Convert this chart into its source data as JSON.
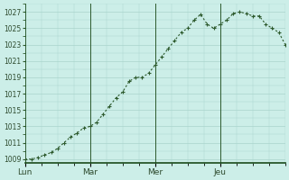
{
  "title": "",
  "x_labels": [
    "Lun",
    "Mar",
    "Mer",
    "Jeu"
  ],
  "y_ticks": [
    1009,
    1011,
    1013,
    1015,
    1017,
    1019,
    1021,
    1023,
    1025,
    1027
  ],
  "ylim": [
    1008.5,
    1028
  ],
  "xlim_days": [
    0,
    4
  ],
  "background_color": "#cceee8",
  "grid_color": "#aad4cc",
  "line_color": "#2d5a2d",
  "marker_color": "#2d5a2d",
  "data_x_days": [
    0.0,
    0.1,
    0.2,
    0.3,
    0.4,
    0.5,
    0.6,
    0.7,
    0.8,
    0.9,
    1.0,
    1.1,
    1.2,
    1.3,
    1.4,
    1.5,
    1.6,
    1.7,
    1.8,
    1.9,
    2.0,
    2.1,
    2.2,
    2.3,
    2.4,
    2.5,
    2.6,
    2.7,
    2.8,
    2.9,
    3.0,
    3.1,
    3.2,
    3.3,
    3.4,
    3.5,
    3.6,
    3.7,
    3.8,
    3.9,
    4.0
  ],
  "data_y": [
    1009.0,
    1009.0,
    1009.2,
    1009.5,
    1009.8,
    1010.3,
    1011.0,
    1011.7,
    1012.2,
    1012.8,
    1013.0,
    1013.5,
    1014.5,
    1015.5,
    1016.5,
    1017.2,
    1018.5,
    1019.0,
    1019.0,
    1019.5,
    1020.5,
    1021.5,
    1022.5,
    1023.5,
    1024.5,
    1025.0,
    1026.0,
    1026.7,
    1025.5,
    1025.0,
    1025.5,
    1026.0,
    1026.8,
    1027.0,
    1026.8,
    1026.5,
    1026.5,
    1025.5,
    1025.0,
    1024.5,
    1023.0
  ],
  "vline_color": "#2d5a2d",
  "spine_color": "#1a4a1a"
}
